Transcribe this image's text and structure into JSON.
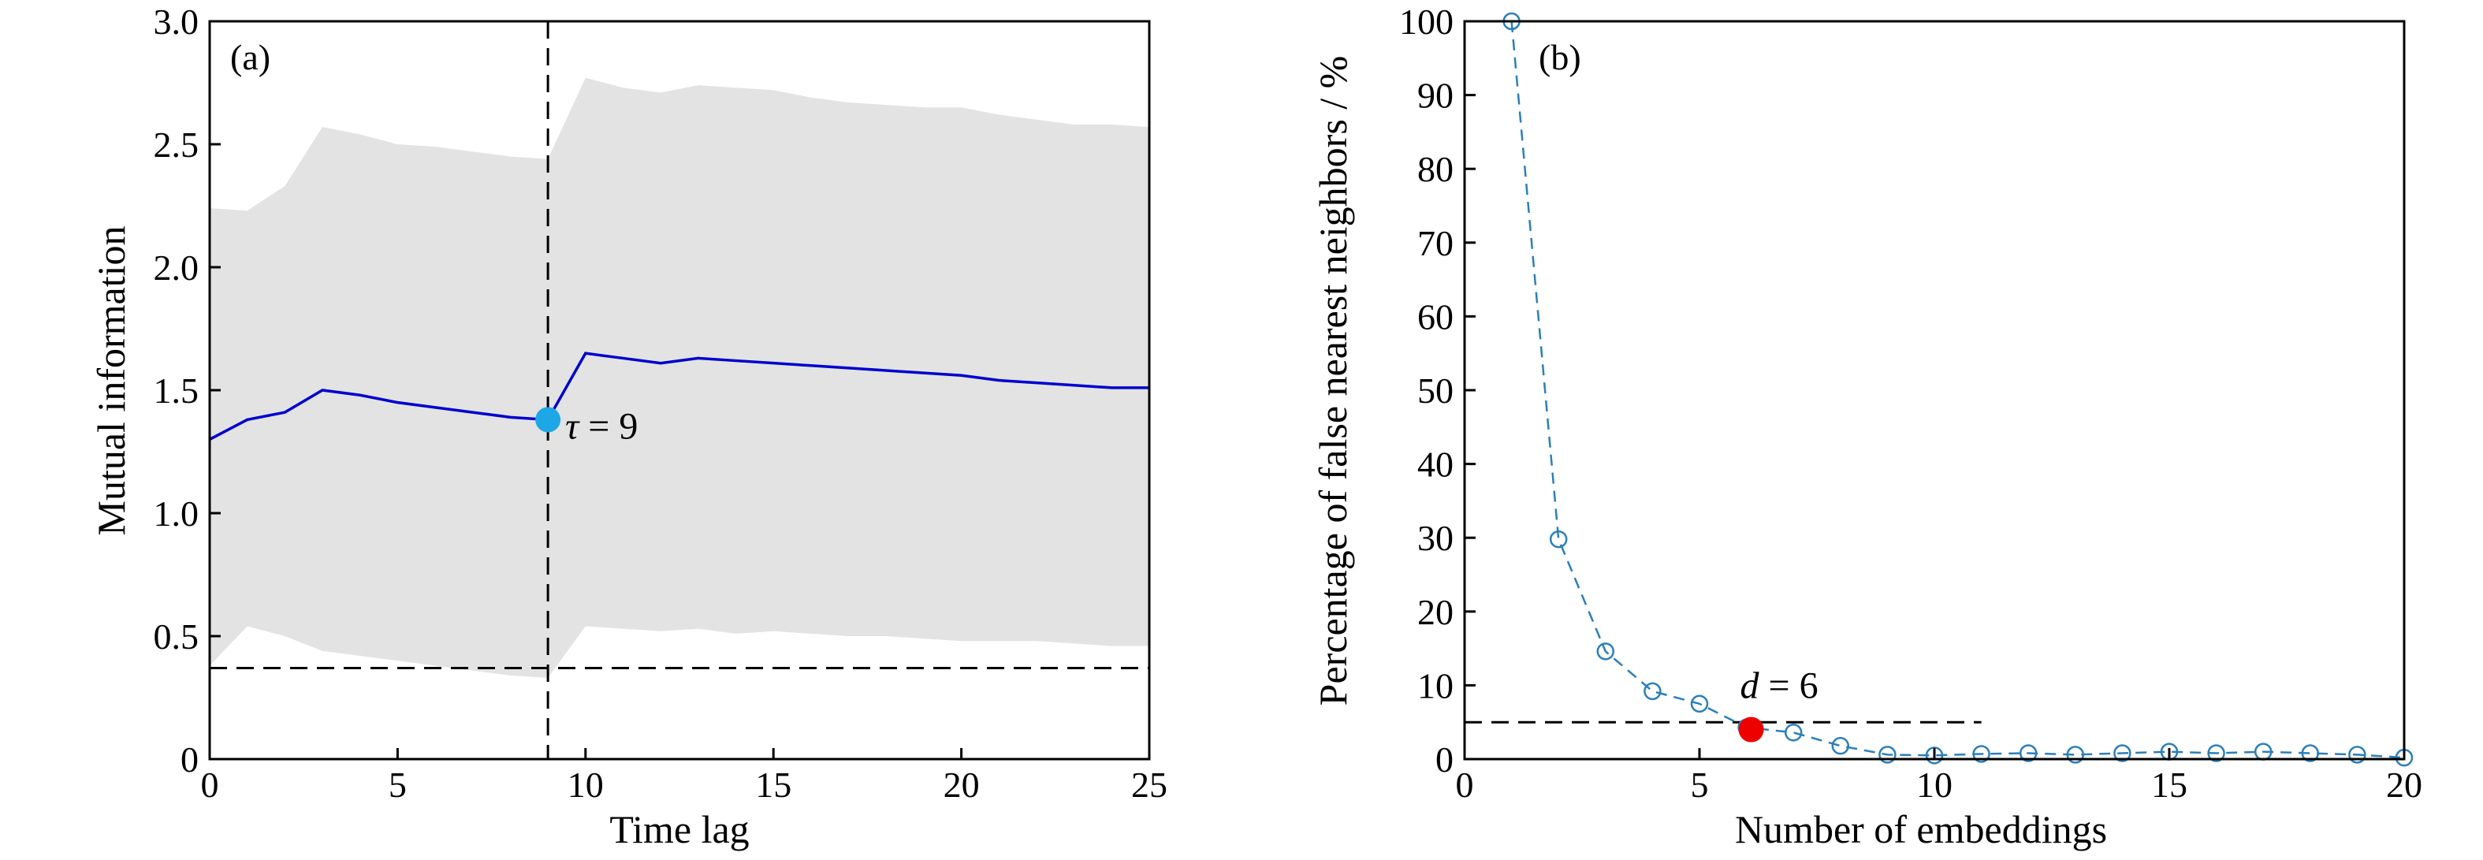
{
  "chart_data": [
    {
      "type": "line",
      "panel_label": "(a)",
      "xlabel": "Time lag",
      "ylabel": "Mutual information",
      "xlim": [
        0,
        25
      ],
      "ylim": [
        0,
        3.0
      ],
      "xticks": [
        0,
        5,
        10,
        15,
        20,
        25
      ],
      "xtick_labels": [
        "0",
        "5",
        "10",
        "15",
        "20",
        "25"
      ],
      "yticks": [
        0,
        0.5,
        1.0,
        1.5,
        2.0,
        2.5,
        3.0
      ],
      "ytick_labels": [
        "0",
        "0.5",
        "1.0",
        "1.5",
        "2.0",
        "2.5",
        "3.0"
      ],
      "grid": false,
      "line_color": "#0000cd",
      "band_color": "#e3e3e3",
      "x": [
        0,
        1,
        2,
        3,
        4,
        5,
        6,
        7,
        8,
        9,
        10,
        11,
        12,
        13,
        14,
        15,
        16,
        17,
        18,
        19,
        20,
        21,
        22,
        23,
        24,
        25
      ],
      "mean": [
        1.3,
        1.38,
        1.41,
        1.5,
        1.48,
        1.45,
        1.43,
        1.41,
        1.39,
        1.38,
        1.65,
        1.63,
        1.61,
        1.63,
        1.62,
        1.61,
        1.6,
        1.59,
        1.58,
        1.57,
        1.56,
        1.54,
        1.53,
        1.52,
        1.51,
        1.51
      ],
      "upper": [
        2.24,
        2.23,
        2.33,
        2.57,
        2.54,
        2.5,
        2.49,
        2.47,
        2.45,
        2.44,
        2.77,
        2.73,
        2.71,
        2.74,
        2.73,
        2.72,
        2.69,
        2.67,
        2.66,
        2.65,
        2.65,
        2.62,
        2.6,
        2.58,
        2.58,
        2.57
      ],
      "lower": [
        0.38,
        0.54,
        0.5,
        0.44,
        0.42,
        0.4,
        0.38,
        0.36,
        0.34,
        0.33,
        0.54,
        0.53,
        0.52,
        0.53,
        0.51,
        0.52,
        0.51,
        0.5,
        0.5,
        0.49,
        0.48,
        0.48,
        0.48,
        0.47,
        0.46,
        0.46
      ],
      "hline_y": 0.37,
      "vline_x": 9,
      "marker": {
        "x": 9,
        "y": 1.38,
        "color": "#1ea7e6",
        "label": "τ = 9",
        "symbol": "τ",
        "rest": " = 9"
      }
    },
    {
      "type": "line",
      "panel_label": "(b)",
      "xlabel": "Number of embeddings",
      "ylabel": "Percentage of false nearest neighbors / %",
      "xlim": [
        0,
        20
      ],
      "ylim": [
        0,
        100
      ],
      "xticks": [
        0,
        5,
        10,
        15,
        20
      ],
      "xtick_labels": [
        "0",
        "5",
        "10",
        "15",
        "20"
      ],
      "yticks": [
        0,
        10,
        20,
        30,
        40,
        50,
        60,
        70,
        80,
        90,
        100
      ],
      "ytick_labels": [
        "0",
        "10",
        "20",
        "30",
        "40",
        "50",
        "60",
        "70",
        "80",
        "90",
        "100"
      ],
      "grid": false,
      "line_color": "#2c7fb8",
      "x": [
        1,
        2,
        3,
        4,
        5,
        6,
        7,
        8,
        9,
        10,
        11,
        12,
        13,
        14,
        15,
        16,
        17,
        18,
        19,
        20
      ],
      "y": [
        100,
        29.8,
        14.6,
        9.2,
        7.5,
        4.3,
        3.6,
        1.8,
        0.6,
        0.5,
        0.7,
        0.8,
        0.6,
        0.8,
        1.0,
        0.8,
        1.0,
        0.8,
        0.6,
        0.2
      ],
      "hline": {
        "y": 5,
        "x_start": 0,
        "x_end": 11
      },
      "marker": {
        "x": 6.1,
        "y": 4.0,
        "color": "#ee0000",
        "label": "d = 6",
        "symbol": "d",
        "rest": " = 6"
      }
    }
  ]
}
